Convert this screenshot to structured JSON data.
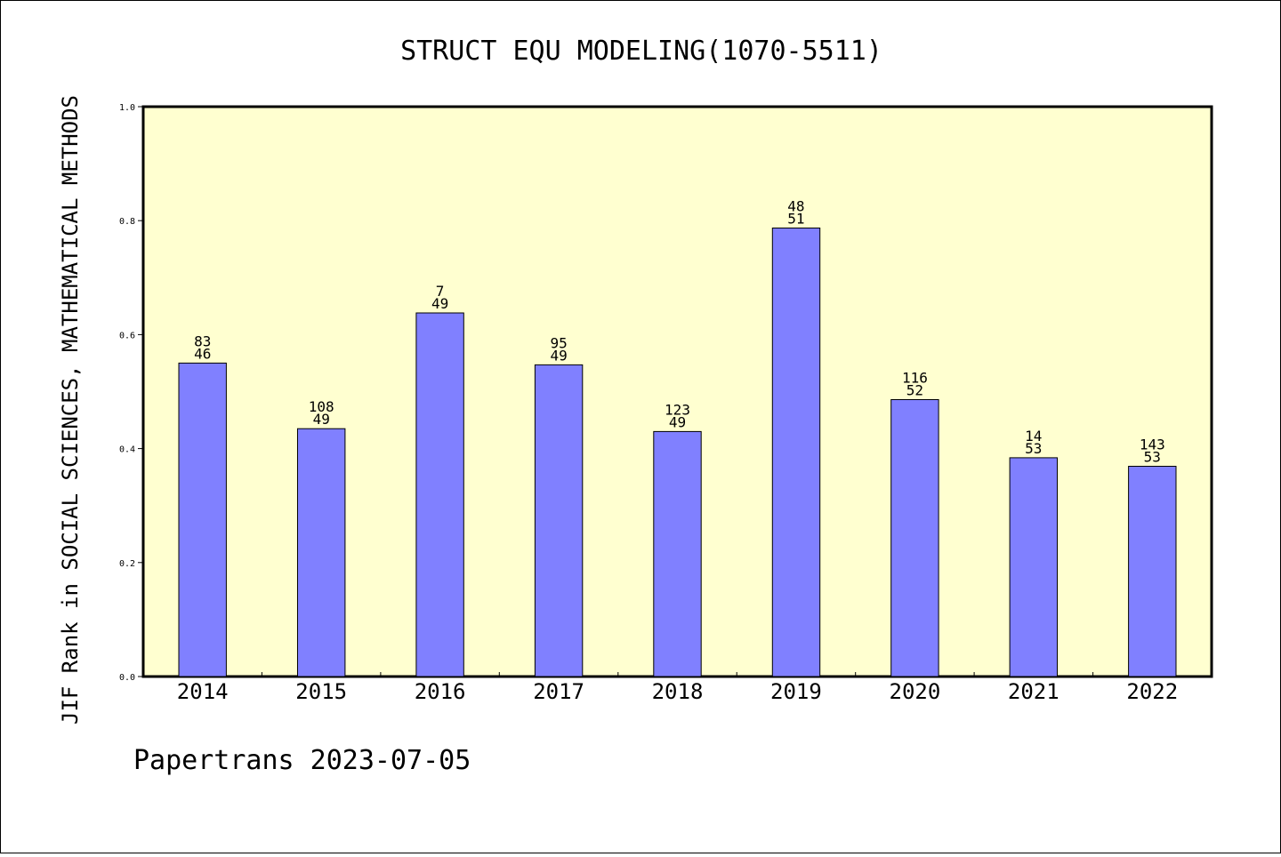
{
  "chart_data": {
    "type": "bar",
    "title": "STRUCT EQU MODELING(1070-5511)",
    "xlabel": "",
    "ylabel": "JIF Rank in SOCIAL SCIENCES, MATHEMATICAL METHODS",
    "ylim": [
      0,
      1.0
    ],
    "yticks": [
      "0.0",
      "0.2",
      "0.4",
      "0.6",
      "0.8",
      "1.0"
    ],
    "categories": [
      "2014",
      "2015",
      "2016",
      "2017",
      "2018",
      "2019",
      "2020",
      "2021",
      "2022"
    ],
    "values": [
      0.55,
      0.435,
      0.638,
      0.547,
      0.43,
      0.787,
      0.486,
      0.384,
      0.369
    ],
    "labels_top": [
      "83",
      "108",
      "7",
      "95",
      "123",
      "48",
      "116",
      "14",
      "143"
    ],
    "labels_bottom": [
      "46",
      "49",
      "49",
      "49",
      "49",
      "51",
      "52",
      "53",
      "53"
    ],
    "grid": false,
    "legend": "none",
    "colors": {
      "plot_background": "#ffffd0",
      "bar_fill": "#8080ff",
      "bar_stroke": "#000000"
    }
  },
  "footer": "Papertrans 2023-07-05"
}
